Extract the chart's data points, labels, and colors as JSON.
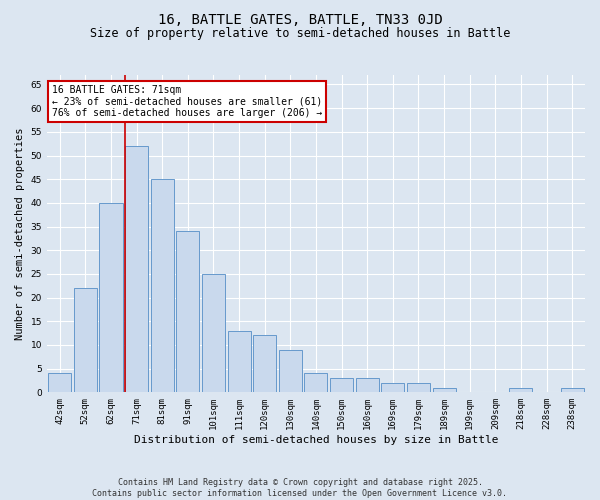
{
  "title1": "16, BATTLE GATES, BATTLE, TN33 0JD",
  "title2": "Size of property relative to semi-detached houses in Battle",
  "xlabel": "Distribution of semi-detached houses by size in Battle",
  "ylabel": "Number of semi-detached properties",
  "categories": [
    "42sqm",
    "52sqm",
    "62sqm",
    "71sqm",
    "81sqm",
    "91sqm",
    "101sqm",
    "111sqm",
    "120sqm",
    "130sqm",
    "140sqm",
    "150sqm",
    "160sqm",
    "169sqm",
    "179sqm",
    "189sqm",
    "199sqm",
    "209sqm",
    "218sqm",
    "228sqm",
    "238sqm"
  ],
  "values": [
    4,
    22,
    40,
    52,
    45,
    34,
    25,
    13,
    12,
    9,
    4,
    3,
    3,
    2,
    2,
    1,
    0,
    0,
    1,
    0,
    1
  ],
  "bar_color": "#c9d9ed",
  "bar_edge_color": "#6699cc",
  "highlight_index": 3,
  "highlight_line_color": "#cc0000",
  "annotation_text": "16 BATTLE GATES: 71sqm\n← 23% of semi-detached houses are smaller (61)\n76% of semi-detached houses are larger (206) →",
  "annotation_box_color": "#cc0000",
  "ylim": [
    0,
    67
  ],
  "yticks": [
    0,
    5,
    10,
    15,
    20,
    25,
    30,
    35,
    40,
    45,
    50,
    55,
    60,
    65
  ],
  "background_color": "#dce6f1",
  "plot_bg_color": "#dce6f1",
  "grid_color": "#ffffff",
  "footer_text": "Contains HM Land Registry data © Crown copyright and database right 2025.\nContains public sector information licensed under the Open Government Licence v3.0.",
  "title1_fontsize": 10,
  "title2_fontsize": 8.5,
  "xlabel_fontsize": 8,
  "ylabel_fontsize": 7.5,
  "tick_fontsize": 6.5,
  "annotation_fontsize": 7,
  "footer_fontsize": 6
}
